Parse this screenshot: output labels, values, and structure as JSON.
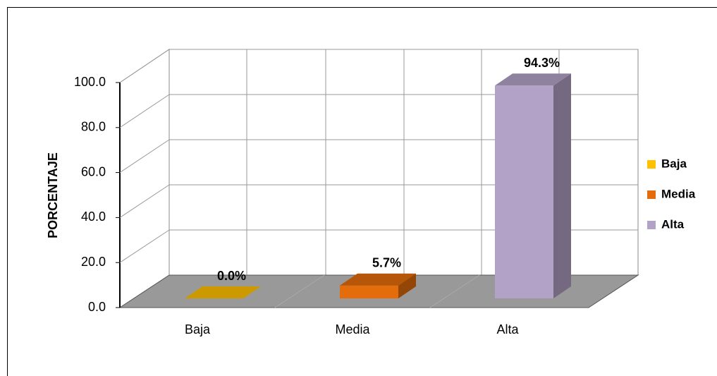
{
  "chart_data": {
    "type": "bar3d",
    "ylabel": "PORCENTAJE",
    "categories": [
      "Baja",
      "Media",
      "Alta"
    ],
    "values": [
      0.0,
      5.7,
      94.3
    ],
    "value_labels": [
      "0.0%",
      "5.7%",
      "94.3%"
    ],
    "colors": [
      "#ffc000",
      "#e46c0a",
      "#b3a2c7"
    ],
    "ylim": [
      0,
      100
    ],
    "yticks": [
      {
        "value": 0,
        "label": "0.0"
      },
      {
        "value": 20,
        "label": "20.0"
      },
      {
        "value": 40,
        "label": "40.0"
      },
      {
        "value": 60,
        "label": "60.0"
      },
      {
        "value": 80,
        "label": "80.0"
      },
      {
        "value": 100,
        "label": "100.0"
      }
    ],
    "grid": true,
    "legend": "right"
  }
}
